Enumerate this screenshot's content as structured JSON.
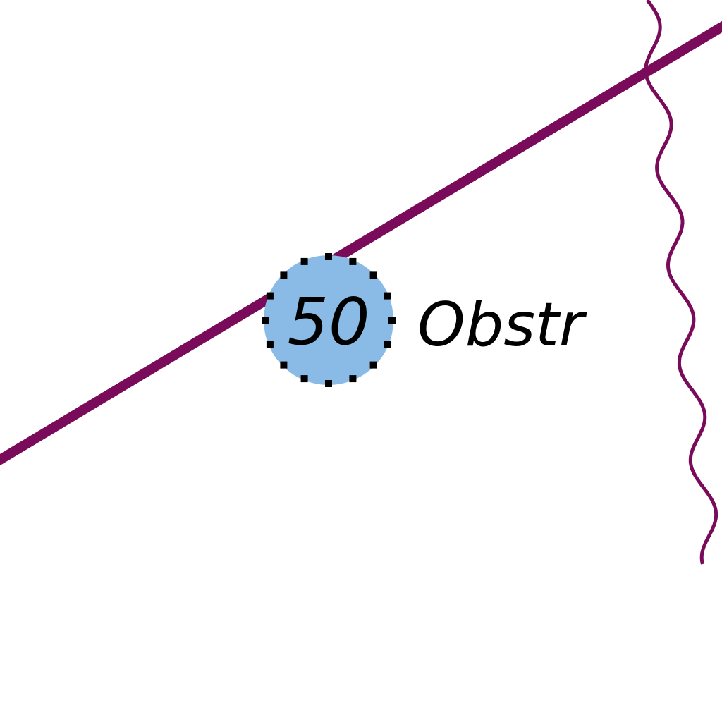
{
  "map": {
    "background_color": "#ffffff",
    "cable_line_color": "#7a0a5a",
    "obstruction": {
      "depth": "50",
      "label": "Obstr",
      "fill_color": "#8abbe6",
      "border_dot_color": "#000000",
      "icon": "obstruction-danger-circle"
    }
  }
}
